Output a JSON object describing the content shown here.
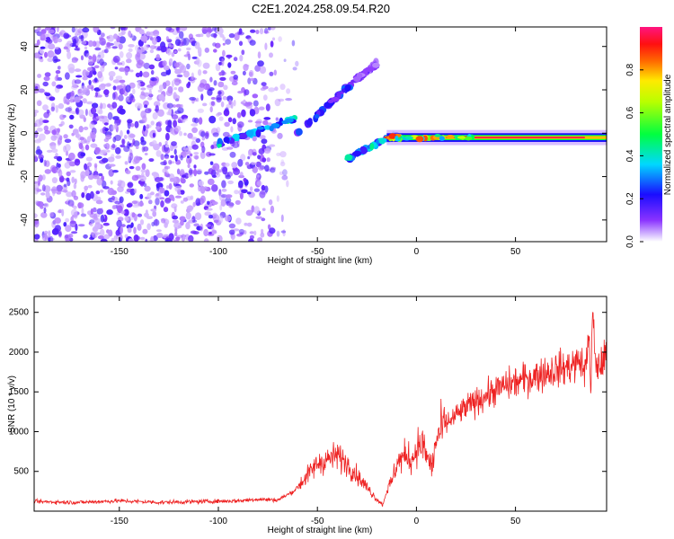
{
  "title": "C2E1.2024.258.09.54.R20",
  "chart_data": [
    {
      "type": "heatmap",
      "xlabel": "Height of straight line (km)",
      "ylabel": "Frequency (Hz)",
      "xlim": [
        -193,
        96
      ],
      "ylim": [
        -50,
        49
      ],
      "xticks": [
        -150,
        -100,
        -50,
        0,
        50
      ],
      "yticks": [
        -40,
        -20,
        0,
        20,
        40
      ],
      "colorbar": {
        "label": "Normalized spectral amplitude",
        "range": [
          0,
          1
        ],
        "ticks": [
          0.0,
          0.2,
          0.4,
          0.6,
          0.8
        ],
        "colormap": "rainbow (white-violet-blue-cyan-green-yellow-red-magenta)"
      },
      "features": [
        {
          "x": [
            -193,
            -60
          ],
          "y": [
            -50,
            49
          ],
          "amplitude": 0.05
        },
        {
          "x": [
            -100,
            -60
          ],
          "y": [
            -5,
            7
          ],
          "amplitude": 0.3
        },
        {
          "x": [
            -60,
            -30
          ],
          "y": [
            0,
            25
          ],
          "amplitude": 0.2
        },
        {
          "x": [
            -30,
            -20
          ],
          "y": [
            25,
            32
          ],
          "amplitude": 0.1
        },
        {
          "x": [
            -35,
            -10
          ],
          "y": [
            -12,
            0
          ],
          "amplitude": 0.3
        },
        {
          "x": [
            -15,
            96
          ],
          "y": [
            -2,
            -2
          ],
          "amplitude": 0.9
        }
      ],
      "grid": false
    },
    {
      "type": "line",
      "xlabel": "Height of straight line (km)",
      "ylabel": "SNR (10 * v/v)",
      "xlim": [
        -193,
        96
      ],
      "ylim": [
        0,
        2700
      ],
      "xticks": [
        -150,
        -100,
        -50,
        0,
        50
      ],
      "yticks": [
        500,
        1000,
        1500,
        2000,
        2500
      ],
      "series": [
        {
          "color": "#ee2222",
          "x": [
            -193,
            -170,
            -150,
            -130,
            -110,
            -90,
            -80,
            -70,
            -62,
            -55,
            -50,
            -45,
            -40,
            -35,
            -30,
            -25,
            -20,
            -17,
            -15,
            -12,
            -10,
            -8,
            -5,
            -2,
            0,
            3,
            5,
            8,
            10,
            12,
            15,
            20,
            25,
            30,
            35,
            40,
            45,
            50,
            55,
            60,
            65,
            70,
            75,
            80,
            83,
            85,
            87,
            88,
            89,
            90,
            92,
            94,
            96
          ],
          "y": [
            120,
            110,
            130,
            110,
            120,
            130,
            150,
            140,
            250,
            450,
            600,
            650,
            700,
            600,
            450,
            300,
            150,
            80,
            250,
            400,
            600,
            650,
            700,
            650,
            800,
            850,
            700,
            550,
            900,
            1000,
            1100,
            1200,
            1300,
            1380,
            1450,
            1520,
            1580,
            1620,
            1660,
            1700,
            1740,
            1780,
            1800,
            1850,
            1900,
            1700,
            2300,
            1400,
            2600,
            1900,
            1800,
            1900,
            1950
          ]
        }
      ],
      "grid": false
    }
  ]
}
